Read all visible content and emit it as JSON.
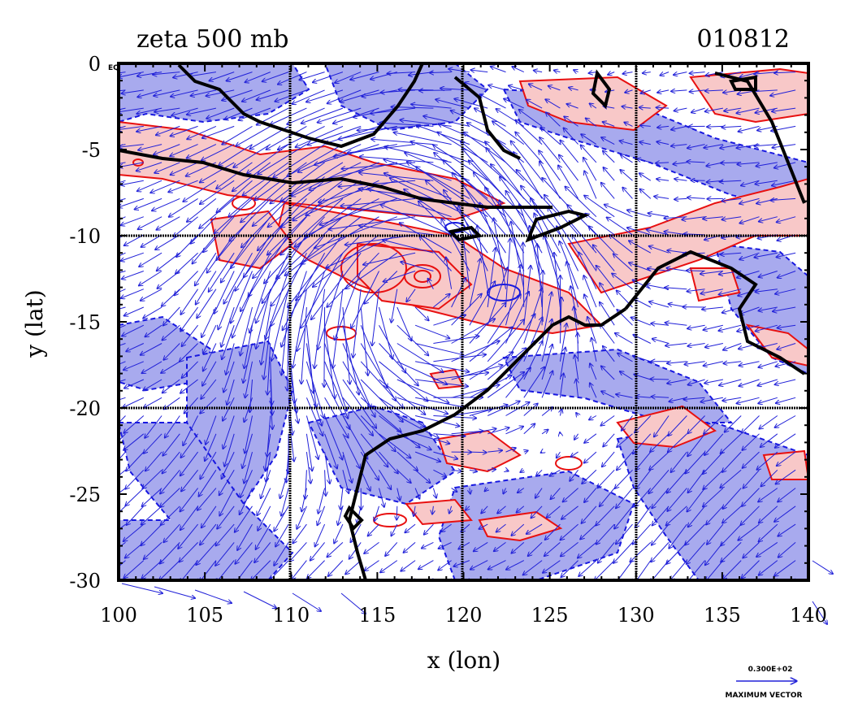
{
  "figure": {
    "title_left": "zeta 500 mb",
    "title_right": "010812",
    "xlabel": "x (lon)",
    "ylabel": "y (lat)",
    "corner_label": "EQ",
    "vector_scale_value": "0.300E+02",
    "vector_scale_label": "MAXIMUM VECTOR"
  },
  "axes": {
    "x_ticks": [
      "100",
      "105",
      "110",
      "115",
      "120",
      "125",
      "130",
      "135",
      "140"
    ],
    "y_ticks": [
      "0",
      "-5",
      "-10",
      "-15",
      "-20",
      "-25",
      "-30"
    ]
  },
  "colors": {
    "positive_fill": "#f8c8c8",
    "positive_line": "#e81010",
    "negative_fill": "#a8aaee",
    "negative_line": "#1818e0",
    "vector": "#2020d8",
    "coast": "#000000",
    "grid": "#000000"
  },
  "chart_data": {
    "type": "contour map with wind vectors",
    "variable": "zeta 500 mb",
    "date_code": "010812",
    "x_range": [
      100,
      140
    ],
    "y_range": [
      -30,
      0
    ],
    "gridlines_x": [
      110,
      120,
      130
    ],
    "gridlines_y": [
      -10,
      -20
    ],
    "grid": true,
    "vector_reference": "0.300E+02"
  }
}
